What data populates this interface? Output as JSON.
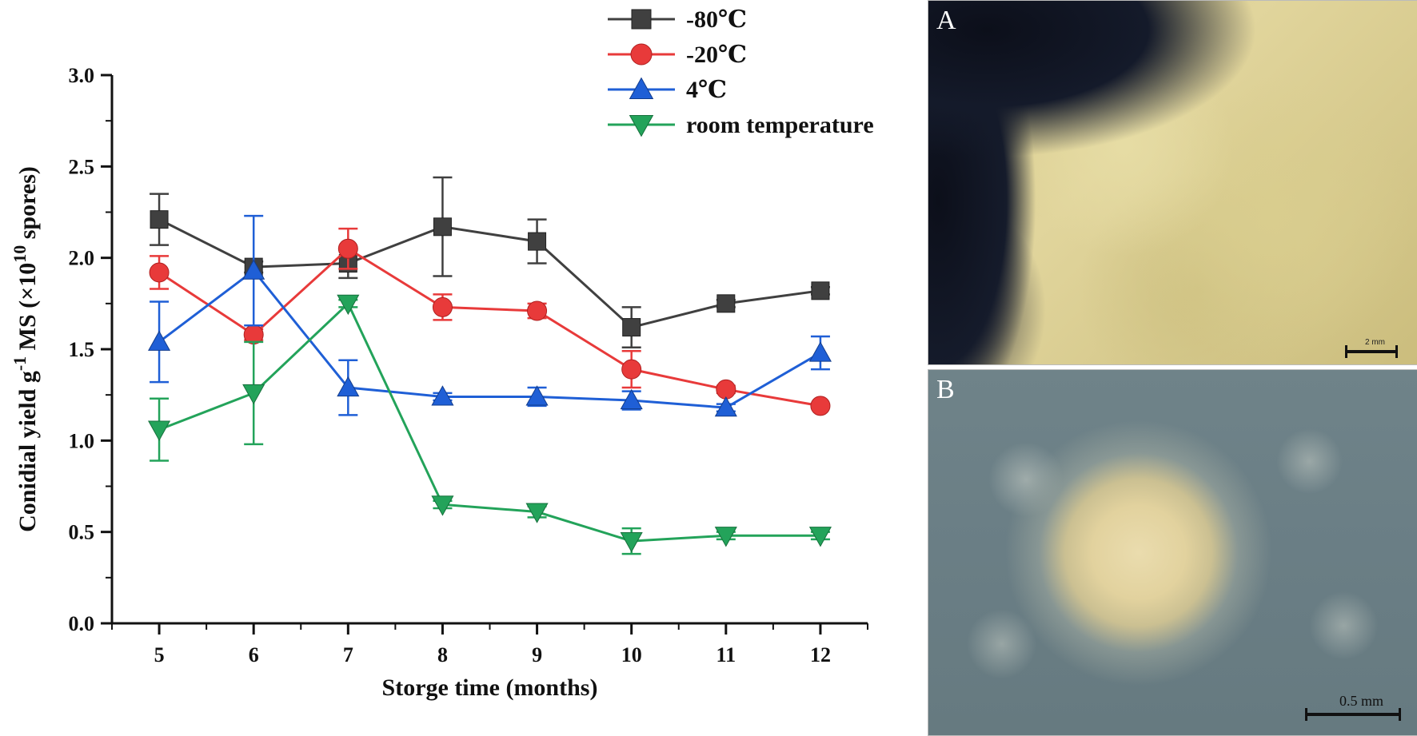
{
  "chart_data": {
    "type": "line",
    "title": "",
    "xlabel": "Storge time  (months)",
    "ylabel_main": "Conidial yield g",
    "ylabel_sup1": "-1",
    "ylabel_mid": " MS (×10",
    "ylabel_sup2": "10",
    "ylabel_end": " spores)",
    "x": [
      5,
      6,
      7,
      8,
      9,
      10,
      11,
      12
    ],
    "xlim": [
      4.5,
      12.5
    ],
    "ylim": [
      0.0,
      3.0
    ],
    "xticks": [
      "5",
      "6",
      "7",
      "8",
      "9",
      "10",
      "11",
      "12"
    ],
    "yticks": [
      "0.0",
      "0.5",
      "1.0",
      "1.5",
      "2.0",
      "2.5",
      "3.0"
    ],
    "legend_position": "top-right",
    "grid": false,
    "series": [
      {
        "name": "-80℃",
        "color": "#404040",
        "marker": "square",
        "values": [
          2.21,
          1.95,
          1.97,
          2.17,
          2.09,
          1.62,
          1.75,
          1.82
        ],
        "errors": [
          0.14,
          0.03,
          0.08,
          0.27,
          0.12,
          0.11,
          0.02,
          0.02
        ]
      },
      {
        "name": "-20℃",
        "color": "#e83a3a",
        "marker": "circle",
        "values": [
          1.92,
          1.58,
          2.05,
          1.73,
          1.71,
          1.39,
          1.28,
          1.19
        ],
        "errors": [
          0.09,
          0.03,
          0.11,
          0.07,
          0.04,
          0.1,
          0.02,
          0.01
        ]
      },
      {
        "name": "4℃",
        "color": "#1f5fd6",
        "marker": "triangle-up",
        "values": [
          1.54,
          1.93,
          1.29,
          1.24,
          1.24,
          1.22,
          1.18,
          1.48
        ],
        "errors": [
          0.22,
          0.3,
          0.15,
          0.02,
          0.05,
          0.05,
          0.02,
          0.09
        ]
      },
      {
        "name": "room temperature",
        "color": "#23a35a",
        "marker": "triangle-down",
        "values": [
          1.06,
          1.26,
          1.75,
          0.65,
          0.61,
          0.45,
          0.48,
          0.48
        ],
        "errors": [
          0.17,
          0.28,
          0.02,
          0.02,
          0.03,
          0.07,
          0.02,
          0.02
        ]
      }
    ]
  },
  "photos": {
    "a_label": "A",
    "a_scale": "2 mm",
    "b_label": "B",
    "b_scale": "0.5 mm"
  }
}
